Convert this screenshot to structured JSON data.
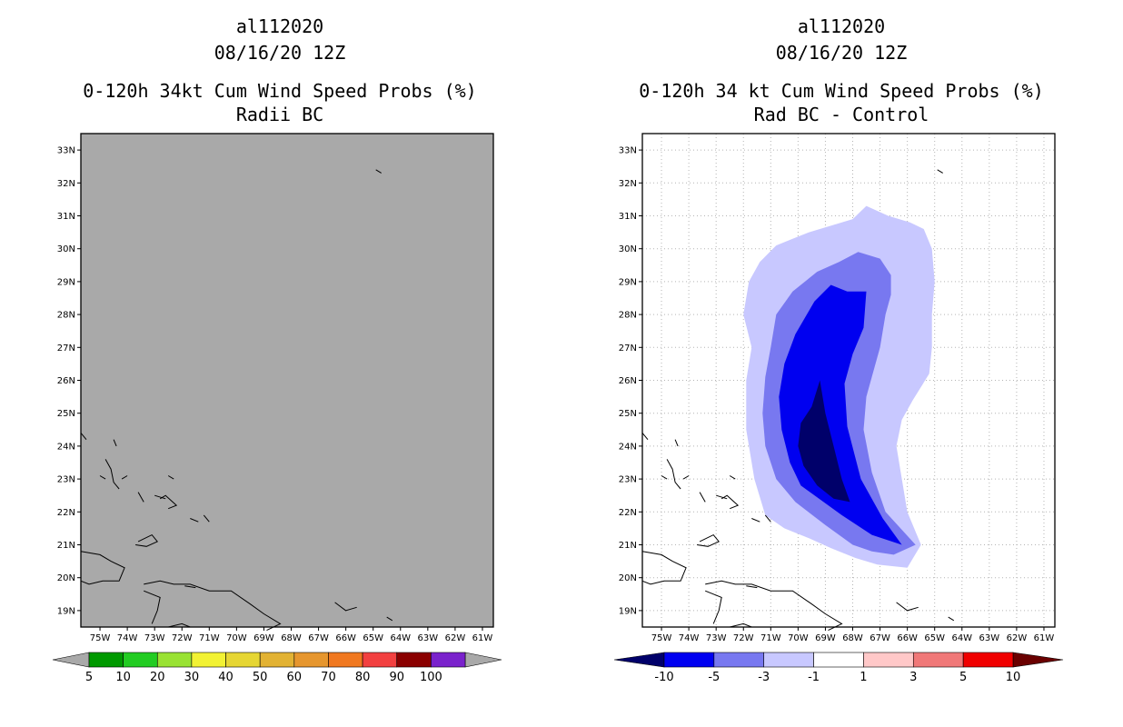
{
  "chart_data": [
    {
      "type": "contour_map",
      "title": [
        "al112020",
        "08/16/20 12Z",
        "0-120h 34kt Cum Wind Speed Probs (%)",
        "Radii BC"
      ],
      "xlabel": "",
      "ylabel": "",
      "xlim": [
        -75.7,
        -60.6
      ],
      "ylim": [
        18.5,
        33.5
      ],
      "xticks": [
        "75W",
        "74W",
        "73W",
        "72W",
        "71W",
        "70W",
        "69W",
        "68W",
        "67W",
        "66W",
        "65W",
        "64W",
        "63W",
        "62W",
        "61W"
      ],
      "yticks": [
        "19N",
        "20N",
        "21N",
        "22N",
        "23N",
        "24N",
        "25N",
        "26N",
        "27N",
        "28N",
        "29N",
        "30N",
        "31N",
        "32N",
        "33N"
      ],
      "field": "uniform_below_5_percent",
      "fill_color": "#a9a9a9",
      "colorbar": {
        "labels": [
          "5",
          "10",
          "20",
          "30",
          "40",
          "50",
          "60",
          "70",
          "80",
          "90",
          "100"
        ],
        "colors": [
          "#009900",
          "#22cc22",
          "#99e233",
          "#f2f233",
          "#e6d633",
          "#e2b233",
          "#e6962e",
          "#f07820",
          "#f24040",
          "#8a0000",
          "#7a22cc"
        ],
        "end_colors": [
          "#a9a9a9",
          "#a9a9a9"
        ]
      }
    },
    {
      "type": "contour_map",
      "title": [
        "al112020",
        "08/16/20 12Z",
        "0-120h 34 kt Cum Wind Speed Probs (%)",
        "Rad BC - Control"
      ],
      "xlabel": "",
      "ylabel": "",
      "xlim": [
        -75.7,
        -60.6
      ],
      "ylim": [
        18.5,
        33.5
      ],
      "xticks": [
        "75W",
        "74W",
        "73W",
        "72W",
        "71W",
        "70W",
        "69W",
        "68W",
        "67W",
        "66W",
        "65W",
        "64W",
        "63W",
        "62W",
        "61W"
      ],
      "yticks": [
        "19N",
        "20N",
        "21N",
        "22N",
        "23N",
        "24N",
        "25N",
        "26N",
        "27N",
        "28N",
        "29N",
        "30N",
        "31N",
        "32N",
        "33N"
      ],
      "grid": true,
      "contour_levels": [
        {
          "max": -1,
          "color": "#c8c8ff",
          "outline": [
            [
              -71.2,
              21.9
            ],
            [
              -71.6,
              23.0
            ],
            [
              -71.9,
              24.5
            ],
            [
              -71.9,
              26.0
            ],
            [
              -71.7,
              27.0
            ],
            [
              -72.0,
              28.0
            ],
            [
              -71.8,
              29.0
            ],
            [
              -71.4,
              29.6
            ],
            [
              -70.8,
              30.1
            ],
            [
              -70.2,
              30.3
            ],
            [
              -69.6,
              30.5
            ],
            [
              -68.8,
              30.7
            ],
            [
              -68.0,
              30.9
            ],
            [
              -67.5,
              31.3
            ],
            [
              -66.7,
              31.0
            ],
            [
              -65.9,
              30.8
            ],
            [
              -65.4,
              30.6
            ],
            [
              -65.1,
              30.0
            ],
            [
              -65.0,
              29.0
            ],
            [
              -65.1,
              28.0
            ],
            [
              -65.1,
              27.0
            ],
            [
              -65.2,
              26.2
            ],
            [
              -65.8,
              25.4
            ],
            [
              -66.2,
              24.8
            ],
            [
              -66.4,
              24.0
            ],
            [
              -66.2,
              23.0
            ],
            [
              -66.0,
              22.0
            ],
            [
              -65.5,
              21.0
            ],
            [
              -66.0,
              20.3
            ],
            [
              -67.1,
              20.4
            ],
            [
              -67.9,
              20.6
            ],
            [
              -68.8,
              20.9
            ],
            [
              -69.6,
              21.2
            ],
            [
              -70.5,
              21.5
            ]
          ]
        },
        {
          "max": -3,
          "color": "#7878f0",
          "outline": [
            [
              -70.1,
              22.3
            ],
            [
              -70.8,
              23.0
            ],
            [
              -71.2,
              24.0
            ],
            [
              -71.3,
              25.0
            ],
            [
              -71.2,
              26.1
            ],
            [
              -71.0,
              27.0
            ],
            [
              -70.8,
              28.0
            ],
            [
              -70.2,
              28.7
            ],
            [
              -69.3,
              29.3
            ],
            [
              -68.5,
              29.6
            ],
            [
              -67.8,
              29.9
            ],
            [
              -67.0,
              29.7
            ],
            [
              -66.6,
              29.2
            ],
            [
              -66.6,
              28.6
            ],
            [
              -66.8,
              28.0
            ],
            [
              -67.0,
              27.0
            ],
            [
              -67.5,
              25.5
            ],
            [
              -67.6,
              24.5
            ],
            [
              -67.3,
              23.2
            ],
            [
              -66.8,
              22.0
            ],
            [
              -65.7,
              21.0
            ],
            [
              -66.5,
              20.7
            ],
            [
              -67.3,
              20.8
            ],
            [
              -68.0,
              21.0
            ],
            [
              -69.0,
              21.6
            ]
          ]
        },
        {
          "max": -5,
          "color": "#0000f0",
          "outline": [
            [
              -69.9,
              22.8
            ],
            [
              -70.3,
              23.5
            ],
            [
              -70.6,
              24.5
            ],
            [
              -70.7,
              25.5
            ],
            [
              -70.5,
              26.5
            ],
            [
              -70.1,
              27.4
            ],
            [
              -69.4,
              28.4
            ],
            [
              -68.8,
              28.9
            ],
            [
              -68.2,
              28.7
            ],
            [
              -67.5,
              28.7
            ],
            [
              -67.6,
              27.6
            ],
            [
              -68.0,
              26.8
            ],
            [
              -68.3,
              25.9
            ],
            [
              -68.2,
              24.6
            ],
            [
              -67.7,
              23.0
            ],
            [
              -66.9,
              21.8
            ],
            [
              -66.2,
              21.0
            ],
            [
              -67.3,
              21.3
            ],
            [
              -68.4,
              21.9
            ]
          ]
        },
        {
          "max": -10,
          "color": "#00006a",
          "outline": [
            [
              -69.2,
              26.0
            ],
            [
              -69.5,
              25.2
            ],
            [
              -69.9,
              24.7
            ],
            [
              -70.0,
              24.0
            ],
            [
              -69.8,
              23.4
            ],
            [
              -69.3,
              22.8
            ],
            [
              -68.7,
              22.4
            ],
            [
              -68.1,
              22.3
            ],
            [
              -68.4,
              23.0
            ],
            [
              -68.7,
              24.0
            ],
            [
              -69.0,
              25.0
            ]
          ]
        }
      ],
      "colorbar": {
        "labels": [
          "-10",
          "-5",
          "-3",
          "-1",
          "1",
          "3",
          "5",
          "10"
        ],
        "colors": [
          "#0000f0",
          "#7878f0",
          "#c8c8ff",
          "#ffffff",
          "#ffc8c8",
          "#f07878",
          "#f00000"
        ],
        "end_colors": [
          "#00006a",
          "#6a0000"
        ]
      }
    }
  ]
}
